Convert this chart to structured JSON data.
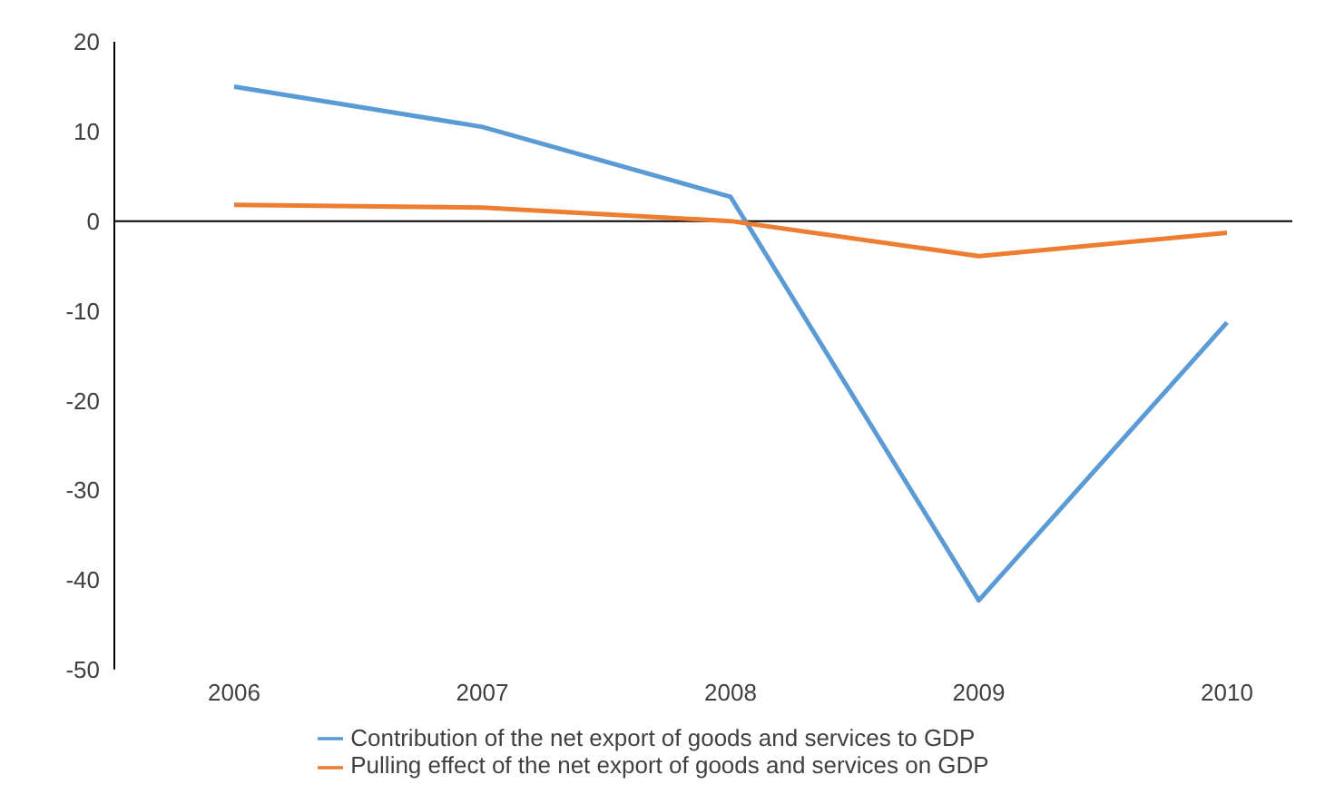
{
  "chart_data": {
    "type": "line",
    "categories": [
      "2006",
      "2007",
      "2008",
      "2009",
      "2010"
    ],
    "series": [
      {
        "name": "Contribution of the net export of goods and services to GDP",
        "color": "#5b9bd5",
        "values": [
          15,
          10.5,
          2.7,
          -42.3,
          -11.3
        ]
      },
      {
        "name": "Pulling effect of the net export of goods and services on GDP",
        "color": "#ed7d31",
        "values": [
          1.8,
          1.5,
          0,
          -3.9,
          -1.3
        ]
      }
    ],
    "ylim": [
      -50,
      20
    ],
    "yticks": [
      -50,
      -40,
      -30,
      -20,
      -10,
      0,
      10,
      20
    ],
    "ref_lines": [
      {
        "axis": "y",
        "value": 0,
        "color": "#000000"
      }
    ],
    "grid": false,
    "legend": "bottom",
    "marker": "none",
    "line_style": "solid"
  }
}
